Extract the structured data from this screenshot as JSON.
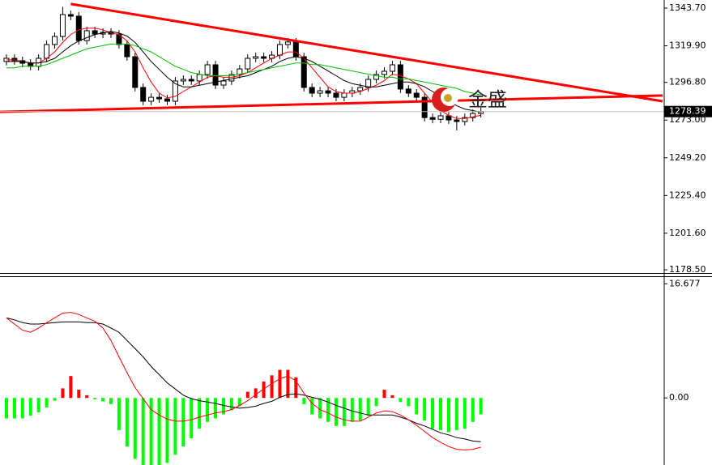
{
  "chart_data": [
    {
      "type": "candlestick",
      "open": [
        1310.0,
        1312.0,
        1310.5,
        1308.9,
        1306.9,
        1312.0,
        1320.7,
        1325.8,
        1339.6,
        1338.6,
        1323.2,
        1329.4,
        1327.3,
        1328.4,
        1327.3,
        1320.7,
        1313.0,
        1293.6,
        1284.9,
        1287.4,
        1286.4,
        1284.9,
        1297.7,
        1298.7,
        1297.7,
        1301.8,
        1307.9,
        1295.1,
        1297.7,
        1301.8,
        1305.3,
        1312.0,
        1313.0,
        1312.0,
        1314.0,
        1320.7,
        1322.3,
        1313.0,
        1293.6,
        1290.0,
        1291.5,
        1290.0,
        1287.4,
        1290.0,
        1291.5,
        1293.6,
        1298.7,
        1301.8,
        1303.8,
        1307.9,
        1292.6,
        1290.0,
        1287.4,
        1274.6,
        1273.5,
        1275.7,
        1273.1,
        1272.1,
        1274.6,
        1277.2
      ],
      "high": [
        1314.5,
        1314.5,
        1313.0,
        1311.4,
        1314.5,
        1323.2,
        1328.3,
        1344.5,
        1342.1,
        1341.1,
        1331.9,
        1331.9,
        1330.9,
        1330.9,
        1329.8,
        1323.2,
        1315.5,
        1296.1,
        1289.9,
        1289.9,
        1288.9,
        1300.2,
        1301.2,
        1301.2,
        1304.3,
        1310.4,
        1310.4,
        1300.2,
        1304.3,
        1307.8,
        1314.5,
        1315.5,
        1315.5,
        1316.5,
        1323.2,
        1324.8,
        1324.8,
        1315.5,
        1296.1,
        1294.0,
        1294.0,
        1292.5,
        1292.5,
        1294.0,
        1296.1,
        1301.2,
        1304.3,
        1306.3,
        1310.4,
        1310.4,
        1295.1,
        1292.5,
        1289.9,
        1277.1,
        1278.2,
        1278.2,
        1275.6,
        1277.1,
        1279.7,
        1280.9
      ],
      "low": [
        1307.5,
        1308.0,
        1306.4,
        1304.4,
        1304.4,
        1309.5,
        1318.2,
        1323.3,
        1336.1,
        1320.7,
        1320.7,
        1324.8,
        1324.8,
        1324.8,
        1318.2,
        1310.5,
        1291.1,
        1282.4,
        1282.4,
        1283.9,
        1282.4,
        1282.4,
        1295.2,
        1295.2,
        1295.2,
        1299.3,
        1292.6,
        1292.6,
        1295.2,
        1299.3,
        1302.8,
        1309.5,
        1309.5,
        1309.5,
        1311.5,
        1318.2,
        1310.5,
        1291.1,
        1287.5,
        1287.5,
        1287.5,
        1284.9,
        1284.9,
        1287.5,
        1289.0,
        1291.1,
        1296.2,
        1299.3,
        1301.3,
        1290.1,
        1287.5,
        1284.9,
        1272.1,
        1271.0,
        1271.0,
        1270.6,
        1266.5,
        1269.6,
        1272.1,
        1274.7
      ],
      "close": [
        1312.0,
        1310.5,
        1308.9,
        1306.9,
        1312.0,
        1320.7,
        1325.8,
        1339.6,
        1338.6,
        1323.2,
        1329.4,
        1327.3,
        1328.4,
        1327.3,
        1320.7,
        1313.0,
        1293.6,
        1284.9,
        1287.4,
        1286.4,
        1284.9,
        1297.7,
        1298.7,
        1297.7,
        1301.8,
        1307.9,
        1295.1,
        1297.7,
        1301.8,
        1305.3,
        1312.0,
        1313.0,
        1312.0,
        1314.0,
        1320.7,
        1322.3,
        1313.0,
        1293.6,
        1290.0,
        1291.5,
        1290.0,
        1287.4,
        1290.0,
        1291.5,
        1293.6,
        1298.7,
        1301.8,
        1303.8,
        1307.9,
        1292.6,
        1290.0,
        1287.4,
        1274.6,
        1273.5,
        1275.7,
        1273.1,
        1272.1,
        1274.6,
        1277.2,
        1278.4
      ],
      "series": [
        {
          "color": "#ff0000",
          "values": [
            1311,
            1311,
            1310,
            1309,
            1309,
            1312,
            1316,
            1322,
            1327,
            1330,
            1331,
            1331,
            1330,
            1328,
            1327,
            1323,
            1316,
            1306,
            1297,
            1290,
            1287,
            1288,
            1291,
            1294,
            1297,
            1300,
            1301,
            1300,
            1300,
            1301,
            1303,
            1306,
            1309,
            1312,
            1314,
            1316,
            1316,
            1312,
            1306,
            1300,
            1294,
            1291,
            1290,
            1290,
            1291,
            1293,
            1295,
            1298,
            1302,
            1301,
            1299,
            1296,
            1290,
            1284,
            1279,
            1276,
            1274,
            1274,
            1275,
            1276
          ]
        },
        {
          "color": "#000000",
          "values": [
            1310,
            1310,
            1310,
            1309,
            1309,
            1310,
            1312,
            1316,
            1320,
            1323,
            1325,
            1327,
            1328,
            1329,
            1328,
            1326,
            1322,
            1316,
            1310,
            1305,
            1300,
            1296,
            1294,
            1294,
            1295,
            1296,
            1297,
            1298,
            1299,
            1300,
            1301,
            1303,
            1305,
            1307,
            1310,
            1312,
            1313,
            1312,
            1310,
            1307,
            1304,
            1301,
            1298,
            1296,
            1295,
            1294,
            1294,
            1295,
            1296,
            1297,
            1297,
            1296,
            1294,
            1291,
            1288,
            1285,
            1282,
            1280,
            1279,
            1278
          ]
        },
        {
          "color": "#00c000",
          "values": [
            1306,
            1306,
            1307,
            1307,
            1307,
            1308,
            1310,
            1312,
            1314,
            1316,
            1318,
            1319,
            1320,
            1321,
            1321,
            1321,
            1320,
            1318,
            1316,
            1313,
            1310,
            1307,
            1305,
            1303,
            1302,
            1301,
            1301,
            1301,
            1301,
            1302,
            1303,
            1304,
            1305,
            1306,
            1307,
            1308,
            1309,
            1309,
            1308,
            1308,
            1307,
            1306,
            1305,
            1304,
            1303,
            1302,
            1301,
            1300,
            1300,
            1299,
            1299,
            1298,
            1297,
            1296,
            1295,
            1294,
            1293,
            1291,
            1290,
            1289
          ]
        }
      ],
      "trendlines": [
        {
          "color": "#ff0000",
          "x": [
            8,
            81.6
          ],
          "values": [
            1346.3,
            1284.9
          ]
        },
        {
          "color": "#ff0000",
          "x": [
            -0.8,
            81.6
          ],
          "values": [
            1278.2,
            1288.5
          ]
        }
      ],
      "last_price": 1278.39,
      "up_color": "#ffffff",
      "down_color": "#000000",
      "watermark": "金盛",
      "xlim": [
        -0.8,
        81.6
      ],
      "ylim": [
        1177.0,
        1348.8
      ],
      "yticks": [
        {
          "value": 1343.7,
          "label": "1343.70"
        },
        {
          "value": 1319.9,
          "label": "1319.90"
        },
        {
          "value": 1296.8,
          "label": "1296.80"
        },
        {
          "value": 1273,
          "label": "1273.00"
        },
        {
          "value": 1249.2,
          "label": "1249.20"
        },
        {
          "value": 1225.4,
          "label": "1225.40"
        },
        {
          "value": 1201.6,
          "label": "1201.60"
        },
        {
          "value": 1178.5,
          "label": "1178.50"
        }
      ]
    },
    {
      "type": "macd",
      "histogram": [
        -3.0,
        -3.0,
        -3.0,
        -2.6,
        -2.1,
        -1.4,
        -0.4,
        1.4,
        3.2,
        1.2,
        0.4,
        -0.2,
        -0.5,
        -0.9,
        -4.7,
        -7.1,
        -8.9,
        -9.8,
        -9.8,
        -9.8,
        -9.5,
        -8.3,
        -7.1,
        -5.9,
        -4.5,
        -3.5,
        -3.0,
        -2.4,
        -1.8,
        -1.2,
        0.9,
        1.4,
        2.4,
        3.3,
        4.1,
        4.1,
        3.0,
        -0.9,
        -2.4,
        -3.0,
        -3.5,
        -4.1,
        -4.1,
        -3.5,
        -3.3,
        -2.6,
        -1.2,
        1.2,
        0.4,
        -0.6,
        -1.2,
        -2.4,
        -3.3,
        -4.5,
        -4.7,
        -5.0,
        -4.7,
        -4.5,
        -3.5,
        -2.4
      ],
      "series": [
        {
          "color": "#000000",
          "values": [
            11.7,
            11.4,
            11.0,
            10.8,
            10.8,
            10.9,
            11.0,
            11.1,
            11.1,
            11.1,
            11.0,
            11.0,
            10.8,
            10.2,
            9.6,
            8.4,
            7.2,
            6.0,
            4.6,
            3.4,
            2.2,
            1.3,
            0.4,
            -0.1,
            -0.4,
            -0.6,
            -0.8,
            -1.1,
            -1.3,
            -1.5,
            -1.4,
            -1.2,
            -0.8,
            -0.5,
            0.1,
            0.5,
            0.6,
            0.4,
            0.1,
            -0.2,
            -0.6,
            -1.1,
            -1.5,
            -1.9,
            -2.2,
            -2.5,
            -2.5,
            -2.5,
            -2.5,
            -2.8,
            -3.2,
            -3.7,
            -4.1,
            -4.6,
            -5.1,
            -5.4,
            -5.8,
            -6.0,
            -6.3,
            -6.4
          ]
        },
        {
          "color": "#ff0000",
          "values": [
            11.7,
            10.8,
            9.9,
            9.6,
            10.2,
            11.0,
            11.7,
            12.4,
            12.5,
            12.2,
            11.7,
            11.2,
            10.2,
            8.4,
            6.0,
            3.7,
            1.5,
            -0.1,
            -1.7,
            -2.5,
            -3.1,
            -3.4,
            -3.4,
            -3.2,
            -2.8,
            -2.5,
            -2.2,
            -2.0,
            -1.7,
            -1.1,
            -0.4,
            0.5,
            1.3,
            2.1,
            2.8,
            3.2,
            2.5,
            0.7,
            -0.8,
            -1.7,
            -2.2,
            -2.8,
            -3.2,
            -3.4,
            -3.4,
            -2.8,
            -2.2,
            -1.9,
            -2.0,
            -2.5,
            -3.2,
            -4.0,
            -4.9,
            -5.8,
            -6.5,
            -7.1,
            -7.5,
            -7.6,
            -7.5,
            -7.2
          ]
        }
      ],
      "pos_color": "#ff0000",
      "neg_color": "#00ff00",
      "xlim": [
        -0.8,
        81.6
      ],
      "ylim": [
        -9.8,
        17.9
      ],
      "yticks": [
        16.677,
        {
          "value": 0,
          "label": "0.00"
        }
      ]
    }
  ]
}
